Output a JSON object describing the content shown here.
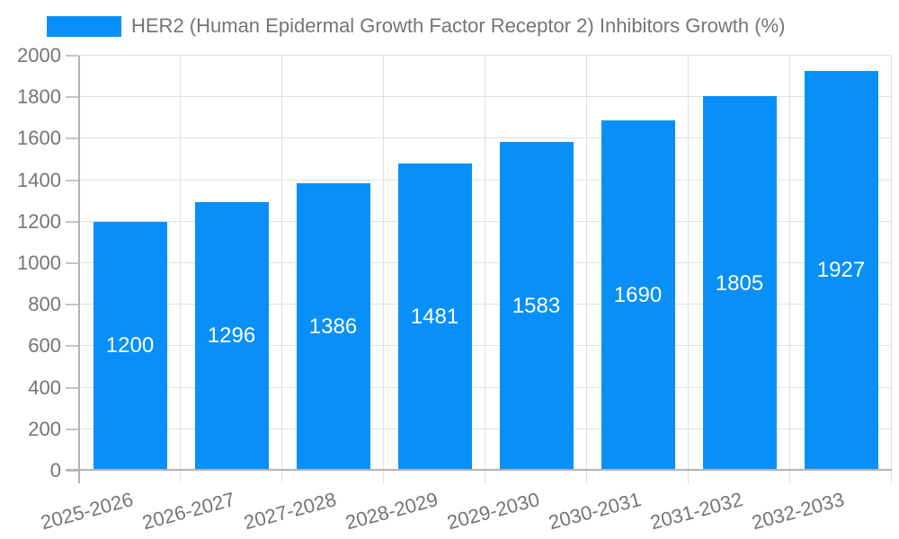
{
  "legend": {
    "label": "HER2 (Human Epidermal Growth Factor Receptor 2) Inhibitors Growth (%)"
  },
  "chart_data": {
    "type": "bar",
    "title": "HER2 (Human Epidermal Growth Factor Receptor 2) Inhibitors Growth (%)",
    "categories": [
      "2025-2026",
      "2026-2027",
      "2027-2028",
      "2028-2029",
      "2029-2030",
      "2030-2031",
      "2031-2032",
      "2032-2033"
    ],
    "values": [
      1200,
      1296,
      1386,
      1481,
      1583,
      1690,
      1805,
      1927
    ],
    "xlabel": "",
    "ylabel": "",
    "ylim": [
      0,
      2000
    ],
    "yticks": [
      0,
      200,
      400,
      600,
      800,
      1000,
      1200,
      1400,
      1600,
      1800,
      2000
    ],
    "grid": true,
    "legend_position": "top-left",
    "x_label_rotation_deg": -15,
    "colors": {
      "bar": "#0890f8",
      "bar_value_label": "#ffffff",
      "axis_text": "#757575",
      "gridline": "#e0e0e0",
      "axis_line": "#b3b3b3",
      "background": "#ffffff"
    }
  }
}
